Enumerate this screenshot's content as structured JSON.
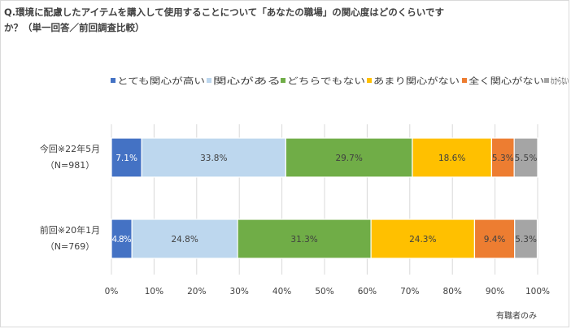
{
  "chart_data": {
    "type": "bar",
    "orientation": "horizontal",
    "stacked": true,
    "title_line1": "Q.環境に配慮したアイテムを購入して使用することについて「あなたの職場」の関心度はどのくらいです",
    "title_line2": "か？（単一回答／前回調査比較）",
    "categories": [
      {
        "label": "今回※22年5月",
        "sublabel": "（N=981）"
      },
      {
        "label": "前回※20年1月",
        "sublabel": "（N=769）"
      }
    ],
    "series": [
      {
        "name": "とても関心が高い",
        "color": "#4472c4",
        "label_color": "#ffffff",
        "values": [
          7.1,
          4.8
        ]
      },
      {
        "name": "関心がある",
        "color": "#bdd7ee",
        "label_color": "#404040",
        "values": [
          33.8,
          24.8
        ]
      },
      {
        "name": "どちらでもない",
        "color": "#70ad47",
        "label_color": "#404040",
        "values": [
          29.7,
          31.3
        ]
      },
      {
        "name": "あまり関心がない",
        "color": "#ffc000",
        "label_color": "#404040",
        "values": [
          18.6,
          24.3
        ]
      },
      {
        "name": "全く関心がない",
        "color": "#ed7d31",
        "label_color": "#404040",
        "values": [
          5.3,
          9.4
        ]
      },
      {
        "name": "わからない",
        "color": "#a5a5a5",
        "label_color": "#404040",
        "values": [
          5.5,
          5.3
        ]
      }
    ],
    "xlim": [
      0,
      100
    ],
    "xticks": [
      "0%",
      "10%",
      "20%",
      "30%",
      "40%",
      "50%",
      "60%",
      "70%",
      "80%",
      "90%",
      "100%"
    ],
    "grid": true,
    "legend_position": "top"
  },
  "footnote": "有職者のみ"
}
